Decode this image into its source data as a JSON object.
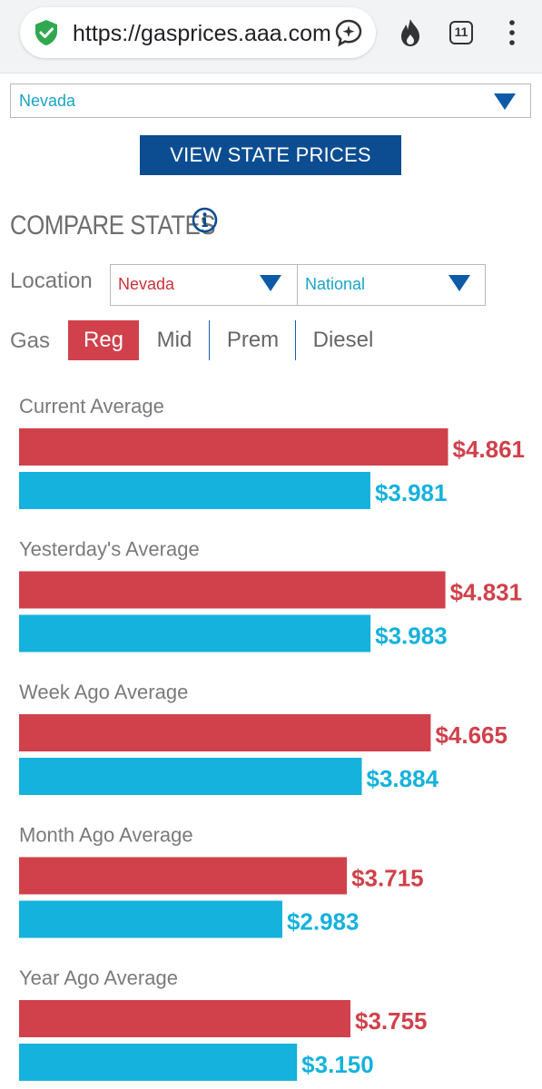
{
  "browser": {
    "url": "https://gasprices.aaa.com",
    "tab_count": "11"
  },
  "state_select": {
    "value": "Nevada"
  },
  "view_button": {
    "label": "VIEW STATE PRICES"
  },
  "compare": {
    "title": "COMPARE STATES",
    "location_label": "Location",
    "location_1": "Nevada",
    "location_2": "National",
    "gas_label": "Gas",
    "gas_tabs": [
      "Reg",
      "Mid",
      "Prem",
      "Diesel"
    ],
    "selected_gas": "Reg"
  },
  "colors": {
    "state": "#d0414b",
    "national": "#14b2dc",
    "button": "#0c4d91",
    "accent_blue": "#0d5aa7"
  },
  "chart_data": {
    "type": "bar",
    "orientation": "horizontal",
    "categories": [
      "Current Average",
      "Yesterday's Average",
      "Week Ago Average",
      "Month Ago Average",
      "Year Ago Average"
    ],
    "series": [
      {
        "name": "Nevada",
        "values": [
          4.861,
          4.831,
          4.665,
          3.715,
          3.755
        ],
        "labels": [
          "$4.861",
          "$4.831",
          "$4.665",
          "$3.715",
          "$3.755"
        ]
      },
      {
        "name": "National",
        "values": [
          3.981,
          3.983,
          3.884,
          2.983,
          3.15
        ],
        "labels": [
          "$3.981",
          "$3.983",
          "$3.884",
          "$2.983",
          "$3.150"
        ]
      }
    ]
  }
}
